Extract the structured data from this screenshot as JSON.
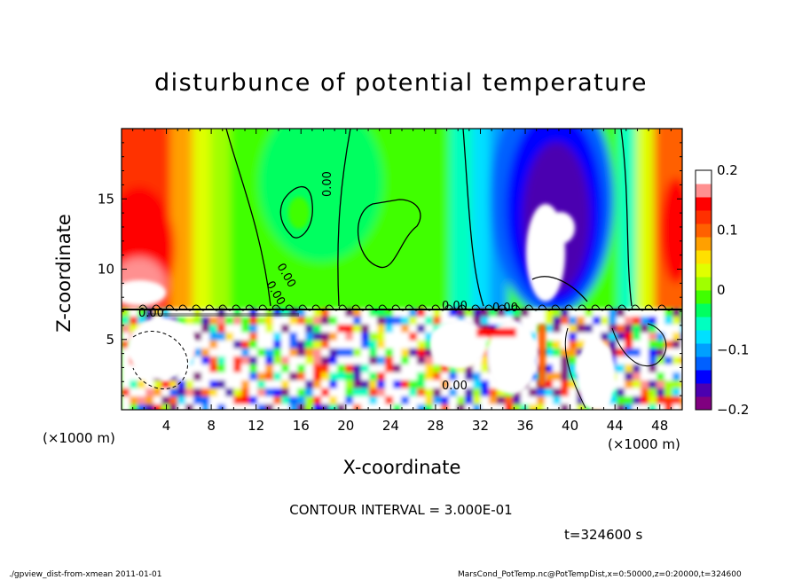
{
  "chart_data": {
    "type": "heatmap",
    "title": "disturbunce of potential temperature",
    "xlabel": "X-coordinate",
    "ylabel": "Z-coordinate",
    "x_unit_left": "(×1000 m)",
    "x_unit_right": "(×1000 m)",
    "x_ticks": [
      "4",
      "8",
      "12",
      "16",
      "20",
      "24",
      "28",
      "32",
      "36",
      "40",
      "44",
      "48"
    ],
    "y_ticks": [
      "5",
      "10",
      "15"
    ],
    "xlim": [
      0,
      50
    ],
    "ylim": [
      0,
      20
    ],
    "colorbar": {
      "range": [
        -0.2,
        0.2
      ],
      "tick_labels": [
        "0.2",
        "0.1",
        "0",
        "−0.1",
        "−0.2"
      ],
      "colors": [
        "#800080",
        "#4b00b0",
        "#0000ff",
        "#0060ff",
        "#00a0ff",
        "#00e0ff",
        "#00ffc0",
        "#00ff60",
        "#40ff00",
        "#a0ff00",
        "#e0ff00",
        "#ffe000",
        "#ffa000",
        "#ff6000",
        "#ff3000",
        "#ff0000",
        "#ff9090",
        "#ffffff"
      ]
    },
    "contour_labels": [
      "0.00",
      "0.00",
      "0.00",
      "0.00",
      "0.00",
      "0.00",
      "0.00"
    ],
    "contour_interval": "CONTOUR INTERVAL = 3.000E-01",
    "time": "t=324600 s"
  },
  "footer": {
    "left": "./gpview_dist-from-xmean 2011-01-01",
    "right": "MarsCond_PotTemp.nc@PotTempDist,x=0:50000,z=0:20000,t=324600"
  }
}
